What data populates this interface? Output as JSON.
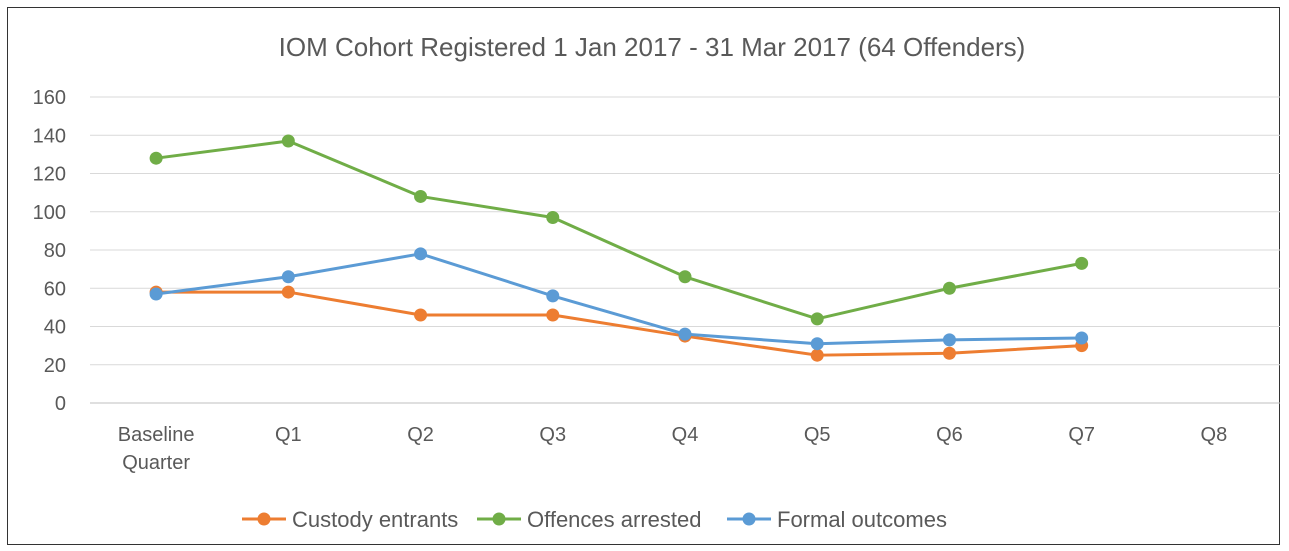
{
  "chart_data": {
    "type": "line",
    "title": "IOM Cohort Registered 1 Jan 2017 - 31 Mar 2017 (64 Offenders)",
    "categories": [
      [
        "Baseline",
        "Quarter"
      ],
      [
        "Q1"
      ],
      [
        "Q2"
      ],
      [
        "Q3"
      ],
      [
        "Q4"
      ],
      [
        "Q5"
      ],
      [
        "Q6"
      ],
      [
        "Q7"
      ],
      [
        "Q8"
      ]
    ],
    "ylim": [
      0,
      160
    ],
    "yticks": [
      0,
      20,
      40,
      60,
      80,
      100,
      120,
      140,
      160
    ],
    "grid": true,
    "legend_position": "bottom",
    "series": [
      {
        "name": "Custody entrants",
        "color": "#ED7D31",
        "values": [
          58,
          58,
          46,
          46,
          35,
          25,
          26,
          30,
          null
        ]
      },
      {
        "name": "Offences arrested",
        "color": "#70AD47",
        "values": [
          128,
          137,
          108,
          97,
          66,
          44,
          60,
          73,
          null
        ]
      },
      {
        "name": "Formal outcomes",
        "color": "#5B9BD5",
        "values": [
          57,
          66,
          78,
          56,
          36,
          31,
          33,
          34,
          null
        ]
      }
    ]
  }
}
